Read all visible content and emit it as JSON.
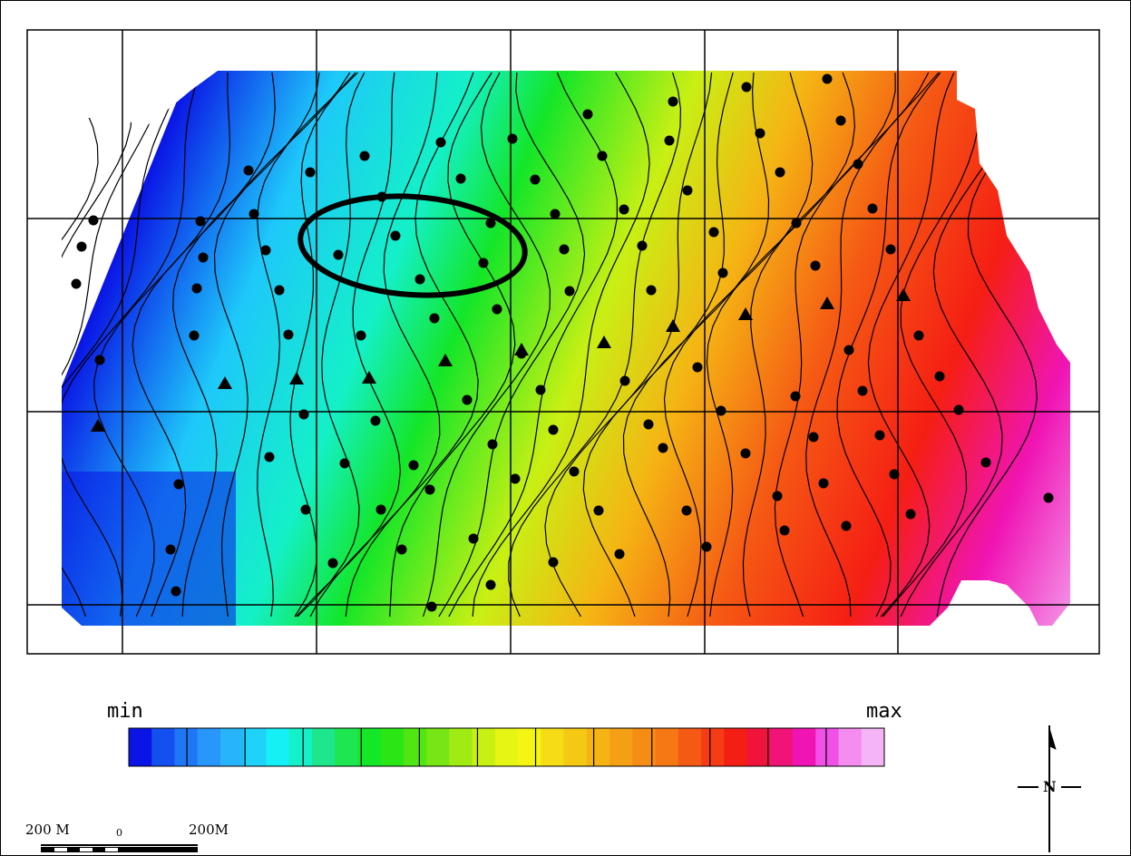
{
  "legend": {
    "min_label": "min",
    "max_label": "max",
    "colors": [
      "#0a14e6",
      "#1450f0",
      "#1e78f5",
      "#2896fa",
      "#28b4fa",
      "#1ed2fa",
      "#14f0f5",
      "#14f0c8",
      "#1ee68c",
      "#1ee650",
      "#14e628",
      "#2ae614",
      "#50e614",
      "#78e614",
      "#a0eb14",
      "#c8f014",
      "#e6f514",
      "#f5f514",
      "#f5dc14",
      "#f5c814",
      "#f5b414",
      "#f5a014",
      "#f58c14",
      "#f57814",
      "#f55a14",
      "#f53c14",
      "#f51e14",
      "#f0143c",
      "#f01478",
      "#f014b4",
      "#f050e6",
      "#f58cf0",
      "#f5b4f5"
    ]
  },
  "scale_bar": {
    "left_label": "200 M",
    "zero_label": "0",
    "right_label": "200M"
  },
  "north_arrow": {
    "label": "N"
  }
}
